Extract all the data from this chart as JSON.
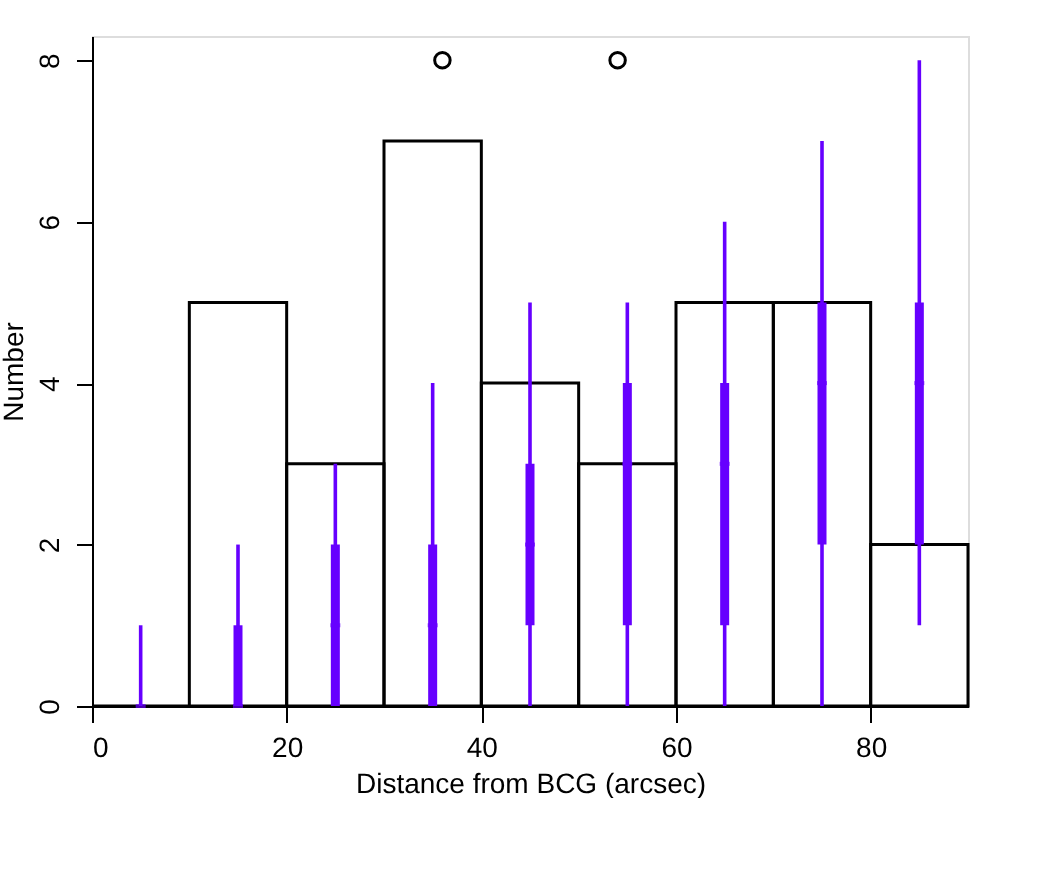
{
  "chart_data": {
    "type": "histogram",
    "xlabel": "Distance from BCG (arcsec)",
    "ylabel": "Number",
    "xlim": [
      0,
      90
    ],
    "ylim": [
      0,
      8.3
    ],
    "xticks": [
      0,
      20,
      40,
      60,
      80
    ],
    "yticks": [
      0,
      2,
      4,
      6,
      8
    ],
    "grid": false,
    "series": [
      {
        "color": "#000000",
        "bins": [
          0,
          10,
          20,
          30,
          40,
          50,
          60,
          70,
          80,
          90
        ],
        "values": [
          0,
          5,
          3,
          7,
          4,
          3,
          5,
          5,
          2
        ]
      },
      {
        "type": "box",
        "color": "#6600ff",
        "x": [
          5,
          15,
          25,
          35,
          45,
          55,
          65,
          75,
          85
        ],
        "boxes": [
          {
            "low": 0,
            "q1": 0,
            "median": 0,
            "q3": 0,
            "high": 1
          },
          {
            "low": 0,
            "q1": 0,
            "median": 0,
            "q3": 1,
            "high": 2
          },
          {
            "low": 0,
            "q1": 0,
            "median": 1,
            "q3": 2,
            "high": 3
          },
          {
            "low": 0,
            "q1": 0,
            "median": 1,
            "q3": 2,
            "high": 4
          },
          {
            "low": 0,
            "q1": 1,
            "median": 2,
            "q3": 3,
            "high": 5
          },
          {
            "low": 0,
            "q1": 1,
            "median": 3,
            "q3": 4,
            "high": 5
          },
          {
            "low": 0,
            "q1": 1,
            "median": 3,
            "q3": 4,
            "high": 6
          },
          {
            "low": 0,
            "q1": 2,
            "median": 4,
            "q3": 5,
            "high": 7
          },
          {
            "low": 1,
            "q1": 2,
            "median": 4,
            "q3": 5,
            "high": 8
          }
        ]
      },
      {
        "type": "scatter",
        "color": "#000000",
        "marker": "circle",
        "x": [
          36,
          54
        ],
        "values": [
          8,
          8
        ]
      }
    ]
  }
}
